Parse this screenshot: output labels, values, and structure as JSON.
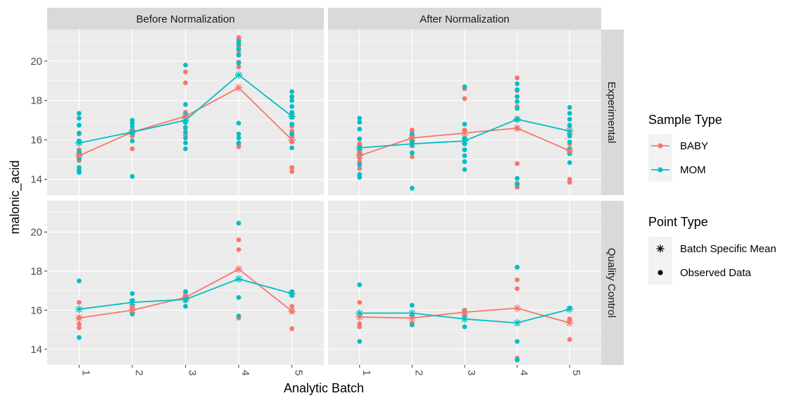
{
  "chart_data": {
    "type": "scatter",
    "facet_columns": [
      "Before Normalization",
      "After Normalization"
    ],
    "facet_rows": [
      "Experimental",
      "Quality Control"
    ],
    "xlabel": "Analytic Batch",
    "ylabel": "malonic_acid",
    "x_categories": [
      "1",
      "2",
      "3",
      "4",
      "5"
    ],
    "y_ticks": [
      14,
      16,
      18,
      20
    ],
    "ylim_rows": [
      [
        13.2,
        21.6
      ],
      [
        13.2,
        21.6
      ]
    ],
    "colors": {
      "BABY": "#F8766D",
      "MOM": "#00BFC4",
      "panel_bg": "#EBEBEB",
      "strip_bg": "#D9D9D9",
      "grid": "#FFFFFF"
    },
    "legend": {
      "placement": "right",
      "sample_type": {
        "title": "Sample Type",
        "items": [
          "BABY",
          "MOM"
        ]
      },
      "point_type": {
        "title": "Point Type",
        "items": [
          "Batch Specific Mean",
          "Observed Data"
        ]
      }
    },
    "panels": [
      {
        "column": "Before Normalization",
        "row": "Experimental",
        "means": {
          "BABY": [
            15.2,
            16.4,
            17.2,
            18.65,
            16.0
          ],
          "MOM": [
            15.85,
            16.4,
            17.0,
            19.3,
            17.2
          ]
        },
        "points": {
          "BABY": [
            [
              14.95,
              15.15,
              15.3,
              15.5,
              15.9,
              16.3
            ],
            [
              15.55,
              16.2,
              16.4,
              16.5
            ],
            [
              16.25,
              16.6,
              16.9,
              17.4,
              18.9,
              19.45
            ],
            [
              15.65,
              15.8,
              19.7,
              19.95,
              20.4,
              20.75,
              21.1,
              21.2
            ],
            [
              14.4,
              14.6,
              15.9,
              16.2,
              16.45,
              16.7,
              17.2
            ]
          ],
          "MOM": [
            [
              14.35,
              14.45,
              14.6,
              15.05,
              15.2,
              15.4,
              15.95,
              16.35,
              16.75,
              17.1,
              17.35
            ],
            [
              14.15,
              15.95,
              16.4,
              16.7,
              16.85,
              17.0
            ],
            [
              15.55,
              15.85,
              16.1,
              16.4,
              16.65,
              16.9,
              17.3,
              17.8,
              19.8
            ],
            [
              15.85,
              16.1,
              16.3,
              16.85,
              19.9,
              20.3,
              20.6,
              20.85,
              21.0
            ],
            [
              15.6,
              16.3,
              16.8,
              17.15,
              17.4,
              17.7,
              18.0,
              18.2,
              18.45
            ]
          ]
        }
      },
      {
        "column": "After Normalization",
        "row": "Experimental",
        "means": {
          "BABY": [
            15.2,
            16.1,
            16.35,
            16.6,
            15.45
          ],
          "MOM": [
            15.6,
            15.8,
            15.95,
            17.05,
            16.45
          ]
        },
        "points": {
          "BABY": [
            [
              14.55,
              14.9,
              15.1,
              15.4,
              15.8,
              16.05
            ],
            [
              15.15,
              15.7,
              16.1,
              16.45,
              16.5
            ],
            [
              15.5,
              16.0,
              16.5,
              18.1,
              18.6
            ],
            [
              13.6,
              13.8,
              14.8,
              16.6,
              17.7,
              18.2,
              18.5,
              19.15
            ],
            [
              13.85,
              14.0,
              15.4,
              15.8,
              16.3,
              16.7
            ]
          ],
          "MOM": [
            [
              14.1,
              14.25,
              14.75,
              15.25,
              15.6,
              16.05,
              16.55,
              16.9,
              17.1
            ],
            [
              13.55,
              15.35,
              15.8,
              16.0,
              16.15,
              16.3
            ],
            [
              14.5,
              14.9,
              15.2,
              15.5,
              15.8,
              16.1,
              16.8,
              18.7
            ],
            [
              13.75,
              14.05,
              17.05,
              17.6,
              17.95,
              18.2,
              18.55,
              18.85
            ],
            [
              14.85,
              15.3,
              15.55,
              15.9,
              16.2,
              16.75,
              17.05,
              17.35,
              17.65
            ]
          ]
        }
      },
      {
        "column": "Before Normalization",
        "row": "Quality Control",
        "means": {
          "BABY": [
            15.6,
            16.0,
            16.65,
            18.1,
            15.95
          ],
          "MOM": [
            16.05,
            16.4,
            16.55,
            17.6,
            16.85
          ]
        },
        "points": {
          "BABY": [
            [
              15.1,
              15.3,
              15.6,
              16.4
            ],
            [
              15.85,
              16.05,
              16.2
            ],
            [
              16.55,
              16.75,
              16.9
            ],
            [
              15.6,
              19.1,
              19.6
            ],
            [
              15.05,
              15.95,
              16.2
            ]
          ],
          "MOM": [
            [
              14.6,
              17.5
            ],
            [
              15.8,
              16.5,
              16.85
            ],
            [
              16.2,
              16.5,
              16.95
            ],
            [
              15.7,
              16.65,
              20.45
            ],
            [
              16.75,
              16.95
            ]
          ]
        }
      },
      {
        "column": "After Normalization",
        "row": "Quality Control",
        "means": {
          "BABY": [
            15.65,
            15.6,
            15.9,
            16.1,
            15.35
          ],
          "MOM": [
            15.85,
            15.85,
            15.55,
            15.35,
            16.05
          ]
        },
        "points": {
          "BABY": [
            [
              15.15,
              15.3,
              16.4
            ],
            [
              15.35,
              15.7
            ],
            [
              15.75,
              16.0
            ],
            [
              13.55,
              17.1,
              17.55
            ],
            [
              14.5,
              15.55
            ]
          ],
          "MOM": [
            [
              14.4,
              17.3
            ],
            [
              15.25,
              16.25
            ],
            [
              15.15,
              15.9
            ],
            [
              13.45,
              14.4,
              18.2
            ],
            [
              16.1
            ]
          ]
        }
      }
    ]
  }
}
